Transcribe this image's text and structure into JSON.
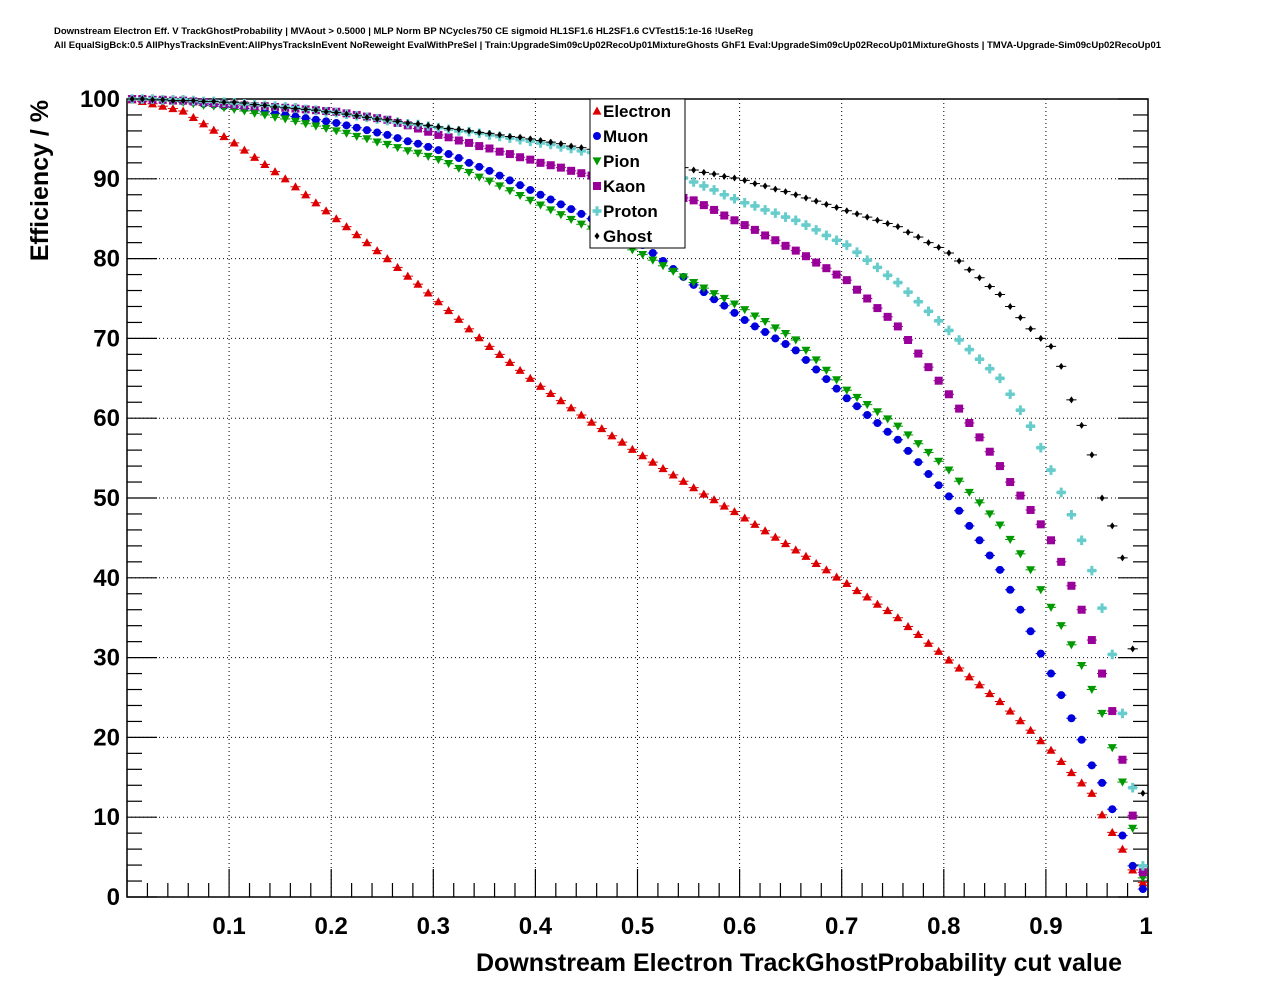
{
  "chart_data": {
    "type": "scatter",
    "title_line1": "Downstream Electron Eff. V TrackGhostProbability | MVAout > 0.5000 | MLP Norm BP NCycles750 CE sigmoid HL1SF1.6 HL2SF1.6 CVTest15:1e-16 !UseReg",
    "title_line2": "All EqualSigBck:0.5 AllPhysTracksInEvent:AllPhysTracksInEvent NoReweight EvalWithPreSel | Train:UpgradeSim09cUp02RecoUp01MixtureGhosts GhF1 Eval:UpgradeSim09cUp02RecoUp01MixtureGhosts | TMVA-Upgrade-Sim09cUp02RecoUp01",
    "xlabel": "Downstream Electron TrackGhostProbability cut value",
    "ylabel": "Efficiency / %",
    "xlim": [
      0,
      1
    ],
    "ylim": [
      0,
      100
    ],
    "xticks": [
      "0.1",
      "0.2",
      "0.3",
      "0.4",
      "0.5",
      "0.6",
      "0.7",
      "0.8",
      "0.9",
      "1"
    ],
    "yticks": [
      "0",
      "10",
      "20",
      "30",
      "40",
      "50",
      "60",
      "70",
      "80",
      "90",
      "100"
    ],
    "grid": true,
    "legend_position": "top-center",
    "x_start": 0.005,
    "x_step": 0.01,
    "series": [
      {
        "name": "Electron",
        "color": "#dd0000",
        "marker": "triangle-up",
        "values": [
          99.9,
          99.7,
          99.4,
          99.1,
          98.8,
          98.5,
          97.7,
          96.9,
          96.1,
          95.3,
          94.5,
          93.6,
          92.7,
          91.8,
          90.9,
          90,
          89,
          88,
          87,
          86,
          85,
          84,
          83,
          82,
          81,
          80,
          78.9,
          77.8,
          76.8,
          75.7,
          74.6,
          73.5,
          72.4,
          71.2,
          70.1,
          69,
          68,
          67,
          66,
          65,
          64,
          63.1,
          62.2,
          61.3,
          60.4,
          59.5,
          58.7,
          57.8,
          57,
          56.1,
          55.3,
          54.5,
          53.7,
          52.9,
          52.1,
          51.3,
          50.5,
          49.8,
          49,
          48.3,
          47.5,
          46.7,
          45.9,
          45.1,
          44.3,
          43.5,
          42.7,
          41.8,
          41,
          40.1,
          39.3,
          38.4,
          37.6,
          36.7,
          35.9,
          35,
          33.9,
          32.9,
          31.8,
          30.8,
          29.7,
          28.7,
          27.6,
          26.6,
          25.5,
          24.5,
          23.3,
          22.1,
          20.9,
          19.6,
          18.4,
          17,
          15.6,
          14.3,
          13,
          10.3,
          8.1,
          6,
          3.4,
          1.8
        ]
      },
      {
        "name": "Muon",
        "color": "#0000dd",
        "marker": "circle",
        "values": [
          100,
          99.9,
          99.9,
          99.8,
          99.8,
          99.7,
          99.6,
          99.4,
          99.3,
          99.1,
          99,
          98.8,
          98.6,
          98.4,
          98.2,
          98,
          97.8,
          97.6,
          97.4,
          97.2,
          97,
          96.7,
          96.4,
          96.1,
          95.8,
          95.5,
          95.1,
          94.7,
          94.4,
          94,
          93.6,
          93.1,
          92.6,
          92,
          91.5,
          91,
          90.4,
          89.8,
          89.2,
          88.6,
          88,
          87.4,
          86.8,
          86.2,
          85.6,
          85,
          84.3,
          83.7,
          83,
          82.4,
          81.7,
          80.7,
          79.7,
          78.7,
          77.7,
          76.7,
          75.8,
          74.9,
          74.1,
          73.2,
          72.3,
          71.5,
          70.8,
          70,
          69.3,
          68.5,
          67.3,
          66.1,
          64.9,
          63.7,
          62.5,
          61.5,
          60.4,
          59.4,
          58.3,
          57.3,
          55.9,
          54.5,
          53,
          51.6,
          50.2,
          48.4,
          46.5,
          44.7,
          42.8,
          41,
          38.5,
          36,
          33.3,
          30.5,
          28,
          25.3,
          22.4,
          19.7,
          16.5,
          14.3,
          11,
          7.7,
          3.9,
          1
        ]
      },
      {
        "name": "Pion",
        "color": "#009900",
        "marker": "triangle-down",
        "values": [
          100,
          99.9,
          99.9,
          99.8,
          99.7,
          99.6,
          99.4,
          99.2,
          99.1,
          98.9,
          98.7,
          98.5,
          98.2,
          98,
          97.7,
          97.5,
          97.2,
          96.9,
          96.6,
          96.3,
          96,
          95.7,
          95.3,
          95,
          94.6,
          94.3,
          93.9,
          93.5,
          93.2,
          92.8,
          92.4,
          91.9,
          91.3,
          90.8,
          90.2,
          89.7,
          89.1,
          88.5,
          87.9,
          87.3,
          86.7,
          86.1,
          85.5,
          84.9,
          84.3,
          83.7,
          83.1,
          82.4,
          81.8,
          81.1,
          80.5,
          79.8,
          79.1,
          78.4,
          77.7,
          77,
          76.3,
          75.6,
          75,
          74.3,
          73.6,
          72.8,
          72.1,
          71.3,
          70.6,
          69.8,
          68.5,
          67.3,
          66,
          64.8,
          63.5,
          62.6,
          61.7,
          60.8,
          59.9,
          59,
          57.9,
          56.8,
          55.7,
          54.6,
          53.5,
          52.1,
          50.7,
          49.4,
          48,
          46.6,
          44.8,
          43,
          41,
          38.5,
          36.3,
          34,
          31.6,
          29,
          26,
          23,
          18.7,
          14.4,
          8.6,
          2.4
        ]
      },
      {
        "name": "Kaon",
        "color": "#990099",
        "marker": "square",
        "values": [
          100,
          100,
          99.9,
          99.9,
          99.8,
          99.8,
          99.7,
          99.6,
          99.5,
          99.4,
          99.3,
          99.2,
          99.1,
          99.1,
          99,
          98.9,
          98.8,
          98.7,
          98.6,
          98.5,
          98.4,
          98.2,
          98,
          97.8,
          97.6,
          97.4,
          97,
          96.7,
          96.3,
          95.9,
          95.5,
          95.2,
          94.8,
          94.5,
          94.1,
          93.8,
          93.4,
          93.1,
          92.7,
          92.4,
          92,
          91.7,
          91.4,
          91,
          90.7,
          90.4,
          90.1,
          89.8,
          89.4,
          89.1,
          88.8,
          88.5,
          88.2,
          87.9,
          87.6,
          87.3,
          86.7,
          86.1,
          85.4,
          84.8,
          84.2,
          83.6,
          82.9,
          82.3,
          81.6,
          81,
          80.3,
          79.5,
          78.8,
          78,
          77.3,
          76.1,
          75,
          73.8,
          72.7,
          71.5,
          69.8,
          68.1,
          66.4,
          64.7,
          63,
          61.2,
          59.4,
          57.6,
          55.8,
          54,
          52,
          50.3,
          48.5,
          46.7,
          44.7,
          42,
          39,
          36,
          32.2,
          28,
          23.3,
          17.2,
          10.2,
          3.1
        ]
      },
      {
        "name": "Proton",
        "color": "#66cccc",
        "marker": "cross",
        "values": [
          100,
          100,
          100,
          99.9,
          99.9,
          99.9,
          99.8,
          99.7,
          99.7,
          99.6,
          99.5,
          99.4,
          99.3,
          99.2,
          99.1,
          99,
          98.9,
          98.7,
          98.6,
          98.4,
          98.3,
          98.1,
          97.9,
          97.7,
          97.5,
          97.3,
          97.1,
          96.9,
          96.8,
          96.6,
          96.4,
          96.2,
          96,
          95.9,
          95.7,
          95.5,
          95.3,
          95.1,
          94.9,
          94.7,
          94.5,
          94.3,
          94,
          93.8,
          93.5,
          93.3,
          93,
          92.8,
          92.5,
          92.3,
          92,
          91.5,
          91,
          90.6,
          90.1,
          89.6,
          89.1,
          88.6,
          88,
          87.5,
          87,
          86.6,
          86.1,
          85.7,
          85.2,
          84.8,
          84.2,
          83.6,
          82.9,
          82.3,
          81.7,
          80.8,
          79.8,
          78.9,
          77.9,
          77,
          75.8,
          74.6,
          73.4,
          72.2,
          71,
          69.8,
          68.6,
          67.4,
          66.2,
          65,
          63,
          61,
          59,
          56.3,
          53.5,
          50.7,
          47.9,
          44.7,
          40.9,
          36.2,
          30.4,
          23,
          13.7,
          3.9
        ]
      },
      {
        "name": "Ghost",
        "color": "#000000",
        "marker": "diamond",
        "values": [
          100,
          100,
          99.9,
          99.9,
          99.8,
          99.8,
          99.8,
          99.7,
          99.7,
          99.6,
          99.6,
          99.5,
          99.3,
          99.2,
          99,
          98.9,
          98.8,
          98.7,
          98.6,
          98.4,
          98.3,
          98.1,
          97.9,
          97.7,
          97.5,
          97.4,
          97.2,
          97,
          96.9,
          96.7,
          96.5,
          96.3,
          96.2,
          96,
          95.8,
          95.7,
          95.5,
          95.3,
          95.2,
          95,
          94.8,
          94.6,
          94.4,
          94.1,
          93.9,
          93.7,
          93.4,
          93.2,
          93,
          92.7,
          92.5,
          92.2,
          91.9,
          91.7,
          91.4,
          91.1,
          90.8,
          90.6,
          90.3,
          90.1,
          89.8,
          89.4,
          89.1,
          88.7,
          88.4,
          88,
          87.6,
          87.2,
          86.8,
          86.4,
          86,
          85.6,
          85.2,
          84.8,
          84.4,
          84,
          83.3,
          82.7,
          82,
          81.4,
          80.7,
          79.7,
          78.6,
          77.6,
          76.5,
          75.5,
          74,
          72.6,
          71.2,
          70,
          69,
          66.5,
          62.3,
          59.1,
          55.4,
          50,
          46.5,
          42.5,
          31.1,
          13
        ]
      }
    ]
  }
}
